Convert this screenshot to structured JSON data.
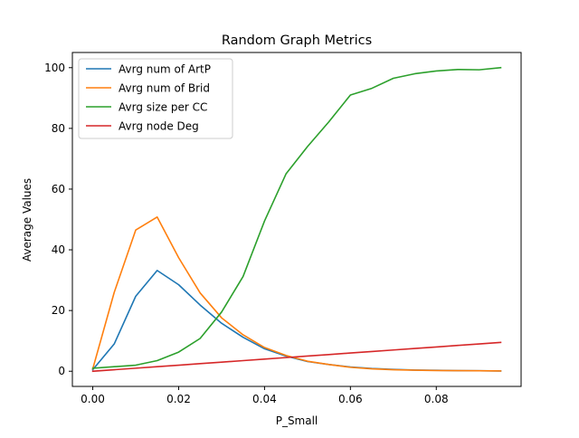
{
  "chart_data": {
    "type": "line",
    "title": "Random Graph Metrics",
    "xlabel": "P_Small",
    "ylabel": "Average Values",
    "xlim": [
      -0.00475,
      0.09975
    ],
    "ylim": [
      -5,
      105
    ],
    "xticks": [
      0.0,
      0.02,
      0.04,
      0.06,
      0.08
    ],
    "xtick_labels": [
      "0.00",
      "0.02",
      "0.04",
      "0.06",
      "0.08"
    ],
    "yticks": [
      0,
      20,
      40,
      60,
      80,
      100
    ],
    "ytick_labels": [
      "0",
      "20",
      "40",
      "60",
      "80",
      "100"
    ],
    "grid": false,
    "legend_position": "upper-left",
    "x": [
      0.0,
      0.005,
      0.01,
      0.015,
      0.02,
      0.025,
      0.03,
      0.035,
      0.04,
      0.045,
      0.05,
      0.055,
      0.06,
      0.065,
      0.07,
      0.075,
      0.08,
      0.085,
      0.09,
      0.095
    ],
    "series": [
      {
        "name": "Avrg num of ArtP",
        "color": "#1f77b4",
        "values": [
          0.5,
          9,
          24.7,
          33.2,
          28.5,
          21.8,
          15.8,
          11.2,
          7.4,
          5.0,
          3.2,
          2.2,
          1.4,
          0.9,
          0.6,
          0.4,
          0.3,
          0.2,
          0.15,
          0.1
        ]
      },
      {
        "name": "Avrg num of Brid",
        "color": "#ff7f0e",
        "values": [
          0.8,
          26,
          46.5,
          50.8,
          37.4,
          25.8,
          17.6,
          12.0,
          7.8,
          5.2,
          3.3,
          2.2,
          1.3,
          0.8,
          0.5,
          0.35,
          0.25,
          0.2,
          0.15,
          0.1
        ]
      },
      {
        "name": "Avrg size per CC",
        "color": "#2ca02c",
        "values": [
          1.0,
          1.5,
          2.0,
          3.5,
          6.3,
          10.8,
          19.5,
          31.2,
          49.5,
          65.0,
          74.0,
          82.2,
          91.0,
          93.2,
          96.5,
          98.0,
          98.9,
          99.4,
          99.3,
          100.0
        ]
      },
      {
        "name": "Avrg node Deg",
        "color": "#d62728",
        "values": [
          0.0,
          0.5,
          1.0,
          1.5,
          2.0,
          2.5,
          3.0,
          3.5,
          4.0,
          4.5,
          5.0,
          5.5,
          6.0,
          6.5,
          7.0,
          7.5,
          8.0,
          8.5,
          9.0,
          9.5
        ]
      }
    ]
  }
}
